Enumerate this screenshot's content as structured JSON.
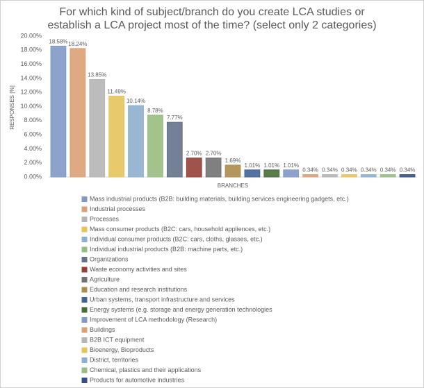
{
  "chart_data": {
    "type": "bar",
    "title": "For which kind of subject/branch do you create LCA studies or establish a LCA project most of the time? (select only 2 categories)",
    "x_label": "BRANCHES",
    "y_label": "RESPONSES [%]",
    "categories": [
      "Mass industrial products (B2B: building materials, building services engineering gadgets, etc.)",
      "Industrial processes",
      "Processes",
      "Mass consumer products (B2C: cars, household appliences, etc.)",
      "Individual consumer products (B2C: cars, cloths, glasses, etc.)",
      "Individual industrial products (B2B: machine parts, etc.)",
      "Organizations",
      "Waste economy activities and sites",
      "Agriculture",
      "Education and research institutions",
      "Urban systems, transport infrastructure and services",
      "Energy systems (e.g. storage and energy generation technologies",
      "Improvement of LCA methodology (Research)",
      "Buildings",
      "B2B ICT equipment",
      "Bioenergy, Bioproducts",
      "District, territories",
      "Chemical, plastics and their applications",
      "Products for automotive industries"
    ],
    "values": [
      18.58,
      18.24,
      13.85,
      11.49,
      10.14,
      8.78,
      7.77,
      2.7,
      2.7,
      1.69,
      1.01,
      1.01,
      1.01,
      0.34,
      0.34,
      0.34,
      0.34,
      0.34,
      0.34
    ],
    "value_labels": [
      "18.58%",
      "18.24%",
      "13.85%",
      "11.49%",
      "10.14%",
      "8.78%",
      "7.77%",
      "2.70%",
      "2.70%",
      "1.69%",
      "1.01%",
      "1.01%",
      "1.01%",
      "0.34%",
      "0.34%",
      "0.34%",
      "0.34%",
      "0.34%",
      "0.34%"
    ],
    "colors": [
      "#8faadc",
      "#f4b183",
      "#c9c9c9",
      "#ffd966",
      "#9dc3e6",
      "#a9d18e",
      "#6f7f99",
      "#a5473e",
      "#7f7f7f",
      "#bf9b52",
      "#4a6fa8",
      "#4e7a3c",
      "#8faadc",
      "#f4b183",
      "#c9c9c9",
      "#ffd966",
      "#9dc3e6",
      "#a9d18e",
      "#3b5998"
    ],
    "ylim": [
      0,
      20
    ],
    "yticks": [
      {
        "value": 0,
        "label": "0.00%"
      },
      {
        "value": 2,
        "label": "2.00%"
      },
      {
        "value": 4,
        "label": "4.00%"
      },
      {
        "value": 6,
        "label": "6.00%"
      },
      {
        "value": 8,
        "label": "8.00%"
      },
      {
        "value": 10,
        "label": "10.00%"
      },
      {
        "value": 12,
        "label": "12.00%"
      },
      {
        "value": 14,
        "label": "14.00%"
      },
      {
        "value": 16,
        "label": "16.00%"
      },
      {
        "value": 18,
        "label": "18.00%"
      },
      {
        "value": 20,
        "label": "20.00%"
      }
    ],
    "grid": false
  }
}
